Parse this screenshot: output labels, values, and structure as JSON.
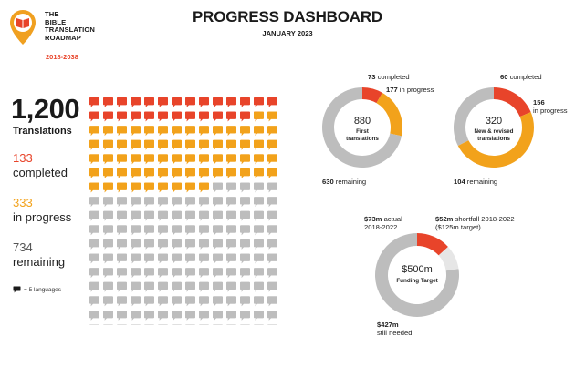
{
  "brand": {
    "lines": [
      "THE",
      "BIBLE",
      "TRANSLATION",
      "ROADMAP"
    ],
    "years": "2018-2038"
  },
  "header": {
    "title": "PROGRESS DASHBOARD",
    "subtitle": "JANUARY 2023"
  },
  "summary": {
    "total": "1,200",
    "total_label": "Translations",
    "completed_value": "133",
    "completed_label": "completed",
    "in_progress_value": "333",
    "in_progress_label": "in progress",
    "remaining_value": "734",
    "remaining_label": "remaining",
    "legend_text": "= 5 languages"
  },
  "colors": {
    "completed": "#e8442a",
    "in_progress": "#f2a21b",
    "remaining": "#bdbdbd",
    "shortfall": "#e6e6e6",
    "text": "#1a1a1a"
  },
  "chart_data": [
    {
      "type": "waffle",
      "unit": "5 languages",
      "columns": 14,
      "categories": [
        "completed",
        "in progress",
        "remaining"
      ],
      "values": [
        133,
        333,
        734
      ],
      "total": 1200
    },
    {
      "type": "pie",
      "center_value": "880",
      "center_label": "First translations",
      "categories": [
        "completed",
        "in progress",
        "remaining"
      ],
      "values": [
        73,
        177,
        630
      ],
      "value_texts": [
        "73",
        "177",
        "630"
      ]
    },
    {
      "type": "pie",
      "center_value": "320",
      "center_label": "New & revised translations",
      "categories": [
        "completed",
        "in progress",
        "remaining"
      ],
      "values": [
        60,
        156,
        104
      ],
      "value_texts": [
        "60",
        "156",
        "104"
      ]
    },
    {
      "type": "pie",
      "center_value": "$500m",
      "center_label": "Funding Target",
      "categories": [
        "actual 2018-2022",
        "shortfall 2018-2022",
        "still needed"
      ],
      "values": [
        73,
        52,
        427
      ],
      "value_texts": [
        "$73m",
        "$52m",
        "$427m"
      ]
    }
  ],
  "labels": {
    "first": {
      "completed": "completed",
      "in_progress": "in progress",
      "remaining": "remaining"
    },
    "newrev": {
      "completed": "completed",
      "in_progress_a": "in progress",
      "remaining": "remaining"
    },
    "funding": {
      "actual_a": "actual",
      "actual_b": "2018-2022",
      "shortfall_a": "shortfall 2018-2022",
      "shortfall_b": "($125m target)",
      "needed_b": "still needed"
    }
  }
}
